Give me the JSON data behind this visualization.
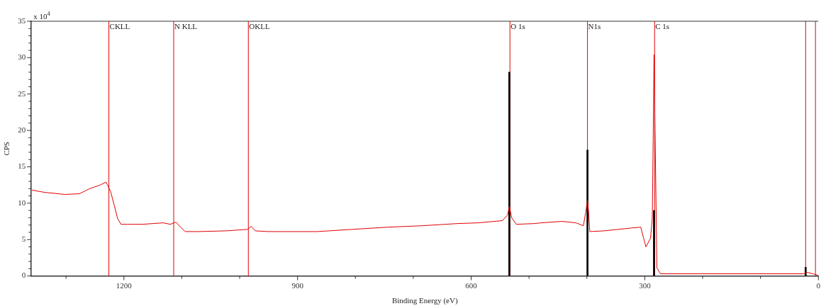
{
  "chart_data": {
    "type": "line",
    "xlabel": "Binding Energy (eV)",
    "ylabel": "CPS",
    "annotations": [
      "x 10$^{4}$"
    ],
    "xlim": [
      1360,
      0
    ],
    "xticks": [
      {
        "value": 1300,
        "label": null
      },
      1200,
      {
        "value": 1100,
        "label": null
      },
      {
        "value": 1000,
        "label": null
      },
      900,
      {
        "value": 800,
        "label": null
      },
      {
        "value": 700,
        "label": null
      },
      600,
      {
        "value": 500,
        "label": null
      },
      {
        "value": 400,
        "label": null
      },
      300,
      {
        "value": 200,
        "label": null
      },
      {
        "value": 100,
        "label": null
      },
      0
    ],
    "ylim": [
      0,
      35
    ],
    "yticks": [
      0,
      {
        "value": 1,
        "label": null
      },
      {
        "value": 2,
        "label": null
      },
      {
        "value": 3,
        "label": null
      },
      {
        "value": 4,
        "label": null
      },
      5,
      {
        "value": 6,
        "label": null
      },
      {
        "value": 7,
        "label": null
      },
      {
        "value": 8,
        "label": null
      },
      {
        "value": 9,
        "label": null
      },
      10,
      {
        "value": 11,
        "label": null
      },
      {
        "value": 12,
        "label": null
      },
      {
        "value": 13,
        "label": null
      },
      {
        "value": 14,
        "label": null
      },
      15,
      {
        "value": 16,
        "label": null
      },
      {
        "value": 17,
        "label": null
      },
      {
        "value": 18,
        "label": null
      },
      {
        "value": 19,
        "label": null
      },
      20,
      {
        "value": 21,
        "label": null
      },
      {
        "value": 22,
        "label": null
      },
      {
        "value": 23,
        "label": null
      },
      {
        "value": 24,
        "label": null
      },
      25,
      {
        "value": 26,
        "label": null
      },
      {
        "value": 27,
        "label": null
      },
      {
        "value": 28,
        "label": null
      },
      {
        "value": 29,
        "label": null
      },
      30,
      {
        "value": 31,
        "label": null
      },
      {
        "value": 32,
        "label": null
      },
      {
        "value": 33,
        "label": null
      },
      {
        "value": 34,
        "label": null
      },
      35
    ],
    "grid": false,
    "legend": false,
    "marker": "none",
    "series": [
      {
        "color": "#e00000",
        "x": [
          1359,
          1338,
          1302,
          1277,
          1259,
          1241,
          1231,
          1229,
          1223,
          1217,
          1211,
          1205,
          1193,
          1168,
          1132,
          1120,
          1110,
          1102,
          1094,
          1072,
          1023,
          987,
          980,
          973,
          951,
          927,
          866,
          806,
          745,
          685,
          624,
          588,
          546,
          537,
          534,
          530,
          522,
          491,
          479,
          443,
          419,
          406,
          402,
          399,
          397,
          395,
          370,
          322,
          307,
          302,
          298,
          290,
          287,
          285.5,
          284,
          282,
          279,
          273,
          201,
          25,
          19,
          10,
          1
        ],
        "values": [
          11.8,
          11.5,
          11.2,
          11.3,
          12.0,
          12.5,
          12.9,
          12.6,
          11.6,
          9.8,
          7.9,
          7.1,
          7.1,
          7.1,
          7.3,
          7.1,
          7.4,
          6.7,
          6.1,
          6.1,
          6.2,
          6.4,
          6.8,
          6.2,
          6.1,
          6.1,
          6.1,
          6.4,
          6.7,
          6.9,
          7.2,
          7.3,
          7.6,
          8.4,
          9.6,
          8.0,
          7.1,
          7.2,
          7.3,
          7.5,
          7.3,
          6.9,
          8.8,
          10.4,
          8.8,
          6.1,
          6.2,
          6.6,
          6.7,
          5.2,
          4.0,
          5.2,
          7.9,
          18.6,
          30.4,
          18.6,
          1.1,
          0.3,
          0.3,
          0.3,
          0.5,
          0.3,
          0.1
        ]
      },
      {
        "type": "bar",
        "color": "#000000",
        "x": [
          534,
          399,
          284,
          22
        ],
        "values": [
          28,
          17.3,
          9,
          1.2
        ]
      }
    ],
    "ref_lines": [
      {
        "axis": "x",
        "value": 1226,
        "label": "CKLL",
        "color": "#e00000"
      },
      {
        "axis": "x",
        "value": 1114,
        "label": "N KLL",
        "color": "#e00000"
      },
      {
        "axis": "x",
        "value": 985,
        "label": "OKLL",
        "color": "#e00000"
      },
      {
        "axis": "x",
        "value": 533,
        "label": "O 1s",
        "color": "#e00000"
      },
      {
        "axis": "x",
        "value": 399,
        "label": "N1s",
        "color": "#e00000"
      },
      {
        "axis": "x",
        "value": 283,
        "label": "C 1s",
        "color": "#e00000"
      },
      {
        "axis": "x",
        "value": 22,
        "color": "#e00000"
      },
      {
        "axis": "x",
        "value": 5,
        "color": "#e00000"
      }
    ]
  }
}
